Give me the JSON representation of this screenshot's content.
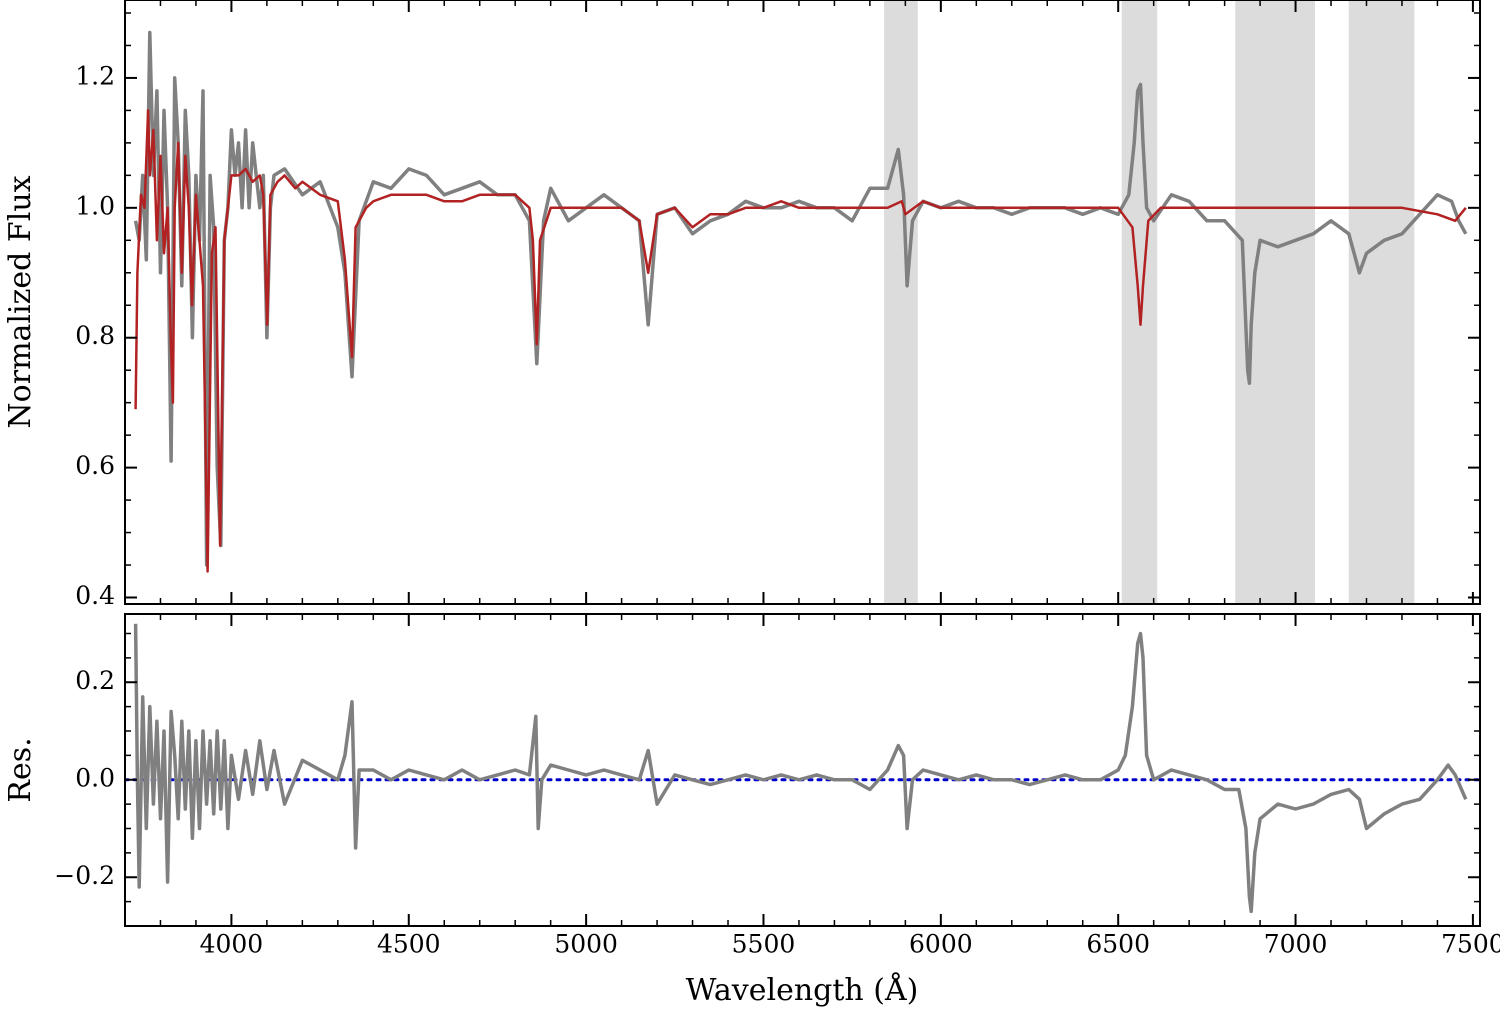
{
  "chart_data": [
    {
      "panel": "top",
      "type": "line",
      "xlabel": "",
      "ylabel": "Normalized Flux",
      "xlim": [
        3700,
        7520
      ],
      "ylim": [
        0.39,
        1.32
      ],
      "yticks": [
        {
          "value": 0.4,
          "label": "0.4"
        },
        {
          "value": 0.6,
          "label": "0.6"
        },
        {
          "value": 0.8,
          "label": "0.8"
        },
        {
          "value": 1.0,
          "label": "1.0"
        },
        {
          "value": 1.2,
          "label": "1.2"
        }
      ],
      "shaded_regions": [
        [
          5840,
          5935
        ],
        [
          6510,
          6610
        ],
        [
          6830,
          7055
        ],
        [
          7150,
          7335
        ]
      ],
      "series": [
        {
          "role": "observed",
          "color": "#808080",
          "x": [
            3730,
            3740,
            3750,
            3760,
            3770,
            3780,
            3790,
            3800,
            3810,
            3820,
            3830,
            3840,
            3850,
            3860,
            3870,
            3880,
            3890,
            3900,
            3910,
            3920,
            3930,
            3940,
            3950,
            3960,
            3970,
            3980,
            3990,
            4000,
            4010,
            4020,
            4030,
            4040,
            4050,
            4060,
            4070,
            4080,
            4090,
            4100,
            4110,
            4120,
            4150,
            4200,
            4250,
            4300,
            4320,
            4340,
            4360,
            4400,
            4450,
            4500,
            4550,
            4600,
            4650,
            4700,
            4750,
            4800,
            4840,
            4861,
            4880,
            4900,
            4950,
            5000,
            5050,
            5100,
            5150,
            5175,
            5200,
            5250,
            5300,
            5350,
            5400,
            5450,
            5500,
            5550,
            5600,
            5650,
            5700,
            5750,
            5800,
            5850,
            5880,
            5895,
            5905,
            5920,
            5950,
            6000,
            6050,
            6100,
            6150,
            6200,
            6250,
            6300,
            6350,
            6400,
            6450,
            6500,
            6530,
            6545,
            6555,
            6563,
            6570,
            6580,
            6600,
            6650,
            6700,
            6750,
            6800,
            6850,
            6865,
            6870,
            6875,
            6885,
            6900,
            6950,
            7000,
            7050,
            7100,
            7150,
            7180,
            7200,
            7250,
            7300,
            7350,
            7400,
            7440,
            7460,
            7480
          ],
          "y": [
            0.98,
            0.95,
            1.05,
            0.92,
            1.27,
            1.05,
            1.18,
            0.9,
            1.15,
            1.0,
            0.61,
            1.2,
            1.1,
            0.88,
            1.15,
            1.05,
            0.8,
            1.05,
            0.95,
            1.18,
            0.45,
            1.05,
            0.97,
            0.6,
            0.48,
            0.95,
            1.0,
            1.12,
            1.05,
            1.1,
            1.0,
            1.12,
            1.0,
            1.1,
            1.05,
            1.0,
            1.05,
            0.8,
            1.0,
            1.05,
            1.06,
            1.02,
            1.04,
            0.97,
            0.9,
            0.74,
            0.98,
            1.04,
            1.03,
            1.06,
            1.05,
            1.02,
            1.03,
            1.04,
            1.02,
            1.02,
            0.98,
            0.76,
            0.98,
            1.03,
            0.98,
            1.0,
            1.02,
            1.0,
            0.98,
            0.82,
            0.99,
            1.0,
            0.96,
            0.98,
            0.99,
            1.01,
            1.0,
            1.0,
            1.01,
            1.0,
            1.0,
            0.98,
            1.03,
            1.03,
            1.09,
            1.02,
            0.88,
            0.98,
            1.01,
            1.0,
            1.01,
            1.0,
            1.0,
            0.99,
            1.0,
            1.0,
            1.0,
            0.99,
            1.0,
            0.99,
            1.02,
            1.1,
            1.18,
            1.19,
            1.1,
            1.0,
            0.98,
            1.02,
            1.01,
            0.98,
            0.98,
            0.95,
            0.75,
            0.73,
            0.82,
            0.9,
            0.95,
            0.94,
            0.95,
            0.96,
            0.98,
            0.96,
            0.9,
            0.93,
            0.95,
            0.96,
            0.99,
            1.02,
            1.01,
            0.98,
            0.96
          ]
        },
        {
          "role": "model",
          "color": "#b22222",
          "x": [
            3730,
            3735,
            3745,
            3755,
            3765,
            3770,
            3780,
            3790,
            3800,
            3810,
            3820,
            3830,
            3835,
            3840,
            3850,
            3860,
            3870,
            3880,
            3889,
            3900,
            3920,
            3933,
            3945,
            3955,
            3968,
            3980,
            3990,
            4000,
            4020,
            4040,
            4060,
            4080,
            4090,
            4101,
            4110,
            4130,
            4150,
            4180,
            4200,
            4250,
            4300,
            4320,
            4340,
            4350,
            4380,
            4400,
            4450,
            4500,
            4550,
            4600,
            4650,
            4700,
            4750,
            4800,
            4840,
            4850,
            4861,
            4870,
            4900,
            4950,
            5000,
            5050,
            5100,
            5150,
            5175,
            5200,
            5250,
            5300,
            5350,
            5400,
            5450,
            5500,
            5550,
            5600,
            5650,
            5700,
            5750,
            5800,
            5850,
            5890,
            5900,
            5950,
            6000,
            6100,
            6200,
            6300,
            6400,
            6500,
            6540,
            6555,
            6563,
            6570,
            6585,
            6620,
            6700,
            6800,
            6900,
            7000,
            7100,
            7200,
            7300,
            7400,
            7450,
            7480
          ],
          "y": [
            0.69,
            0.9,
            1.02,
            1.0,
            1.15,
            1.05,
            1.12,
            0.95,
            1.08,
            0.93,
            1.0,
            0.78,
            0.7,
            1.0,
            1.1,
            0.9,
            1.08,
            1.0,
            0.85,
            1.02,
            0.88,
            0.44,
            0.93,
            0.97,
            0.48,
            0.95,
            1.0,
            1.05,
            1.05,
            1.06,
            1.04,
            1.05,
            1.02,
            0.82,
            1.02,
            1.04,
            1.05,
            1.03,
            1.04,
            1.02,
            1.01,
            0.92,
            0.77,
            0.97,
            1.0,
            1.01,
            1.02,
            1.02,
            1.02,
            1.01,
            1.01,
            1.02,
            1.02,
            1.02,
            1.0,
            0.95,
            0.79,
            0.95,
            1.0,
            1.0,
            1.0,
            1.0,
            1.0,
            0.98,
            0.9,
            0.99,
            1.0,
            0.97,
            0.99,
            0.99,
            1.0,
            1.0,
            1.01,
            1.0,
            1.0,
            1.0,
            1.0,
            1.0,
            1.0,
            1.01,
            0.99,
            1.01,
            1.0,
            1.0,
            1.0,
            1.0,
            1.0,
            1.0,
            0.97,
            0.88,
            0.82,
            0.88,
            0.98,
            1.0,
            1.0,
            1.0,
            1.0,
            1.0,
            1.0,
            1.0,
            1.0,
            0.99,
            0.98,
            1.0
          ]
        }
      ]
    },
    {
      "panel": "bottom",
      "type": "line",
      "xlabel": "Wavelength (Å)",
      "ylabel": "Res.",
      "xlim": [
        3700,
        7520
      ],
      "ylim": [
        -0.3,
        0.34
      ],
      "xticks": [
        {
          "value": 4000,
          "label": "4000"
        },
        {
          "value": 4500,
          "label": "4500"
        },
        {
          "value": 5000,
          "label": "5000"
        },
        {
          "value": 5500,
          "label": "5500"
        },
        {
          "value": 6000,
          "label": "6000"
        },
        {
          "value": 6500,
          "label": "6500"
        },
        {
          "value": 7000,
          "label": "7000"
        },
        {
          "value": 7500,
          "label": "7500"
        }
      ],
      "yticks": [
        {
          "value": -0.2,
          "label": "−0.2"
        },
        {
          "value": 0.0,
          "label": "0.0"
        },
        {
          "value": 0.2,
          "label": "0.2"
        }
      ],
      "reference_line": {
        "y": 0.0,
        "color": "#0000cc",
        "style": "dotted"
      },
      "series": [
        {
          "role": "residual",
          "color": "#808080",
          "x": [
            3730,
            3735,
            3740,
            3750,
            3760,
            3770,
            3780,
            3790,
            3800,
            3810,
            3820,
            3830,
            3840,
            3850,
            3860,
            3870,
            3880,
            3890,
            3900,
            3910,
            3920,
            3930,
            3940,
            3950,
            3960,
            3970,
            3980,
            3990,
            4000,
            4020,
            4040,
            4060,
            4080,
            4100,
            4120,
            4150,
            4200,
            4250,
            4300,
            4320,
            4340,
            4350,
            4360,
            4400,
            4450,
            4500,
            4550,
            4600,
            4650,
            4700,
            4750,
            4800,
            4840,
            4858,
            4865,
            4875,
            4900,
            4950,
            5000,
            5050,
            5100,
            5150,
            5175,
            5200,
            5250,
            5300,
            5350,
            5400,
            5450,
            5500,
            5550,
            5600,
            5650,
            5700,
            5750,
            5800,
            5850,
            5880,
            5895,
            5905,
            5920,
            5950,
            6000,
            6050,
            6100,
            6150,
            6200,
            6250,
            6300,
            6350,
            6400,
            6450,
            6500,
            6520,
            6540,
            6555,
            6563,
            6570,
            6580,
            6600,
            6650,
            6700,
            6750,
            6800,
            6840,
            6860,
            6870,
            6875,
            6885,
            6900,
            6950,
            7000,
            7050,
            7100,
            7150,
            7180,
            7200,
            7250,
            7300,
            7350,
            7400,
            7430,
            7450,
            7480
          ],
          "y": [
            0.32,
            0.0,
            -0.22,
            0.17,
            -0.1,
            0.15,
            -0.05,
            0.12,
            -0.08,
            0.1,
            -0.21,
            0.14,
            0.05,
            -0.08,
            0.12,
            -0.06,
            0.1,
            -0.12,
            0.08,
            -0.1,
            0.1,
            -0.05,
            0.08,
            -0.07,
            0.1,
            -0.06,
            0.08,
            -0.1,
            0.05,
            -0.04,
            0.06,
            -0.03,
            0.08,
            -0.02,
            0.06,
            -0.05,
            0.04,
            0.02,
            0.0,
            0.05,
            0.16,
            -0.14,
            0.02,
            0.02,
            0.0,
            0.02,
            0.01,
            0.0,
            0.02,
            0.0,
            0.01,
            0.02,
            0.01,
            0.13,
            -0.1,
            0.0,
            0.03,
            0.02,
            0.01,
            0.02,
            0.01,
            0.0,
            0.06,
            -0.05,
            0.01,
            0.0,
            -0.01,
            0.0,
            0.01,
            0.0,
            0.01,
            0.0,
            0.01,
            0.0,
            0.0,
            -0.02,
            0.02,
            0.07,
            0.05,
            -0.1,
            0.0,
            0.02,
            0.01,
            0.0,
            0.01,
            0.0,
            0.0,
            -0.01,
            0.0,
            0.01,
            0.0,
            0.0,
            0.02,
            0.05,
            0.15,
            0.28,
            0.3,
            0.25,
            0.05,
            0.0,
            0.02,
            0.01,
            0.0,
            -0.02,
            -0.02,
            -0.1,
            -0.24,
            -0.27,
            -0.15,
            -0.08,
            -0.05,
            -0.06,
            -0.05,
            -0.03,
            -0.02,
            -0.04,
            -0.1,
            -0.07,
            -0.05,
            -0.04,
            0.0,
            0.03,
            0.01,
            -0.04
          ]
        }
      ]
    }
  ]
}
